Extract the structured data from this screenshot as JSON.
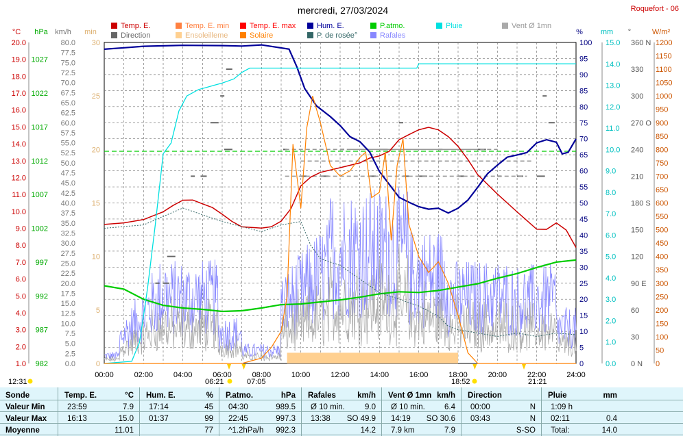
{
  "title": "mercredi, 27/03/2024",
  "station": "Roquefort - 06",
  "colors": {
    "temp": "#cc0000",
    "temp_min": "#ff8040",
    "temp_max": "#ff0000",
    "hum": "#000099",
    "patm": "#00cc00",
    "pluie": "#00e0e0",
    "vent": "#aaaaaa",
    "direction": "#666666",
    "ensoleillement": "#ffd090",
    "solaire": "#ff8000",
    "rosee": "#336666",
    "rafales": "#8888ff"
  },
  "legend": [
    {
      "label": "Temp. E.",
      "color": "#cc0000"
    },
    {
      "label": "Temp. E. min",
      "color": "#ff8040"
    },
    {
      "label": "Temp. E. max",
      "color": "#ff0000"
    },
    {
      "label": "Hum. E.",
      "color": "#000099"
    },
    {
      "label": "P.atmo.",
      "color": "#00cc00"
    },
    {
      "label": "Pluie",
      "color": "#00e0e0"
    },
    {
      "label": "Vent Ø 1mn",
      "color": "#aaaaaa"
    },
    {
      "label": "Direction",
      "color": "#666666"
    },
    {
      "label": "Ensoleilleme",
      "color": "#ffd090"
    },
    {
      "label": "Solaire",
      "color": "#ff8000"
    },
    {
      "label": "P. de rosée°",
      "color": "#336666"
    },
    {
      "label": "Rafales",
      "color": "#8888ff"
    }
  ],
  "chart_data": {
    "type": "line",
    "units": {
      "temp": "°C",
      "patm": "hPa",
      "wind": "km/h",
      "sun": "min",
      "hum": "%",
      "rain": "mm",
      "dir": "°",
      "solar": "W/m²"
    },
    "xticks": [
      "00:00",
      "02:00",
      "04:00",
      "06:00",
      "08:00",
      "10:00",
      "12:00",
      "14:00",
      "16:00",
      "18:00",
      "20:00",
      "22:00",
      "24:00"
    ],
    "xrange": [
      0,
      24
    ],
    "axes": {
      "temp": {
        "range": [
          1,
          20
        ],
        "ticks": [
          "20.0",
          "19.0",
          "18.0",
          "17.0",
          "16.0",
          "15.0",
          "14.0",
          "13.0",
          "12.0",
          "11.0",
          "10.0",
          "9.0",
          "8.0",
          "7.0",
          "6.0",
          "5.0",
          "4.0",
          "3.0",
          "2.0",
          "1.0"
        ]
      },
      "patm": {
        "range": [
          982,
          1029.5
        ],
        "ticks": [
          "1027",
          "1022",
          "1017",
          "1012",
          "1007",
          "1002",
          "997",
          "992",
          "987",
          "982"
        ],
        "tick_values": [
          1027,
          1022,
          1017,
          1012,
          1007,
          1002,
          997,
          992,
          987,
          982
        ]
      },
      "wind": {
        "range": [
          0,
          80
        ],
        "ticks": [
          "80.0",
          "77.5",
          "75.0",
          "72.5",
          "70.0",
          "67.5",
          "65.0",
          "62.5",
          "60.0",
          "57.5",
          "55.0",
          "52.5",
          "50.0",
          "47.5",
          "45.0",
          "42.5",
          "40.0",
          "37.5",
          "35.0",
          "32.5",
          "30.0",
          "27.5",
          "25.0",
          "22.5",
          "20.0",
          "17.5",
          "15.0",
          "12.5",
          "10.0",
          "7.5",
          "5.0",
          "2.5",
          "0.0"
        ]
      },
      "sun": {
        "range": [
          0,
          30
        ],
        "ticks": [
          "30",
          "25",
          "20",
          "15",
          "10",
          "5",
          "0"
        ],
        "tick_values": [
          30,
          25,
          20,
          15,
          10,
          5,
          0
        ]
      },
      "hum": {
        "range": [
          0,
          100
        ],
        "ticks": [
          "100",
          "95",
          "90",
          "85",
          "80",
          "75",
          "70",
          "65",
          "60",
          "55",
          "50",
          "45",
          "40",
          "35",
          "30",
          "25",
          "20",
          "15",
          "10",
          "5",
          "0"
        ]
      },
      "rain": {
        "range": [
          0,
          15
        ],
        "ticks": [
          "15.0",
          "14.0",
          "13.0",
          "12.0",
          "11.0",
          "10.0",
          "9.0",
          "8.0",
          "7.0",
          "6.0",
          "5.0",
          "4.0",
          "3.0",
          "2.0",
          "1.0",
          "0.0"
        ]
      },
      "dir": {
        "range": [
          0,
          360
        ],
        "ticks": [
          "360 N",
          "330",
          "300",
          "270 O",
          "240",
          "210",
          "180 S",
          "150",
          "120",
          "90  E",
          "60",
          "30",
          "0   N"
        ]
      },
      "solar": {
        "range": [
          0,
          1200
        ],
        "ticks": [
          "1200",
          "1150",
          "1100",
          "1050",
          "1000",
          "950",
          "900",
          "850",
          "800",
          "750",
          "700",
          "650",
          "600",
          "550",
          "500",
          "450",
          "400",
          "350",
          "300",
          "250",
          "200",
          "150",
          "100",
          "50",
          "0"
        ]
      }
    },
    "series": [
      {
        "name": "Temp. E.",
        "axis": "temp",
        "x": [
          0,
          1,
          2,
          3,
          3.5,
          4,
          4.5,
          5,
          5.5,
          6,
          6.5,
          7,
          8,
          8.5,
          9,
          9.5,
          10,
          10.5,
          11,
          12,
          13,
          13.5,
          14,
          14.5,
          15,
          15.5,
          16,
          16.5,
          17,
          17.5,
          18,
          18.5,
          19,
          20,
          21,
          22,
          22.5,
          23,
          23.5,
          24
        ],
        "y": [
          9.2,
          9.3,
          9.5,
          10.0,
          10.3,
          10.6,
          10.6,
          10.4,
          10.2,
          9.8,
          9.4,
          9.1,
          9.0,
          9.1,
          9.4,
          10.2,
          11.5,
          12.0,
          12.3,
          12.6,
          12.9,
          13.1,
          13.3,
          13.5,
          14.2,
          14.5,
          14.8,
          15.0,
          14.9,
          14.5,
          13.9,
          13.1,
          12.2,
          11.0,
          10.0,
          9.0,
          8.9,
          9.3,
          8.9,
          7.9
        ]
      },
      {
        "name": "Hum. E.",
        "axis": "hum",
        "x": [
          0,
          1,
          2,
          4,
          6,
          7,
          8,
          9.4,
          9.8,
          10.2,
          10.8,
          11.5,
          12,
          12.5,
          13,
          13.5,
          14,
          14.5,
          15,
          15.5,
          16,
          16.5,
          17,
          17.5,
          18,
          18.5,
          19,
          19.5,
          20,
          20.5,
          21,
          21.5,
          22,
          22.5,
          23,
          23.3,
          23.6,
          24
        ],
        "y": [
          98,
          98,
          99,
          99,
          99,
          99,
          99,
          98,
          92,
          86,
          80,
          77,
          74,
          71,
          69,
          66,
          60,
          56,
          52,
          50,
          49,
          48,
          48,
          47,
          48,
          51,
          55,
          59,
          62,
          64,
          65,
          66,
          69,
          70,
          69,
          65,
          66,
          70
        ]
      },
      {
        "name": "P.atmo.",
        "axis": "patm",
        "x": [
          0,
          1,
          2,
          3,
          4,
          5,
          6,
          7,
          8,
          9,
          10,
          11,
          12,
          13,
          14,
          15,
          16,
          17,
          18,
          19,
          20,
          21,
          22,
          23,
          24
        ],
        "y": [
          993.5,
          993,
          991.5,
          990.6,
          990.2,
          990,
          989.7,
          989.8,
          990.2,
          990.7,
          990.8,
          991.1,
          991.4,
          991.8,
          992.3,
          992.6,
          992.5,
          992.8,
          993.3,
          993.8,
          994.6,
          995.3,
          996.2,
          997,
          997.3
        ]
      },
      {
        "name": "Pluie",
        "axis": "rain",
        "x": [
          0,
          1.4,
          1.8,
          2.2,
          2.6,
          3.0,
          3.4,
          3.8,
          4.2,
          4.8,
          5.2,
          5.6,
          6.0,
          6.3,
          6.6,
          7.0,
          7.4,
          8.0,
          9.0,
          12,
          15.9,
          16.0,
          20,
          24
        ],
        "y": [
          0,
          0.1,
          1.0,
          3.5,
          6.5,
          9.8,
          10.3,
          11.8,
          12.5,
          12.8,
          12.9,
          13.0,
          13.1,
          13.2,
          13.3,
          13.6,
          13.8,
          13.8,
          13.8,
          13.8,
          13.8,
          14.0,
          14.0,
          14.0
        ]
      },
      {
        "name": "P. de rosée°",
        "axis": "temp",
        "x": [
          0,
          2,
          4,
          6,
          8,
          9,
          10,
          10.5,
          11,
          12,
          13,
          14,
          15,
          16,
          17,
          17.5,
          18,
          19,
          20,
          21,
          22,
          23,
          24
        ],
        "y": [
          9.0,
          9.2,
          10.2,
          9.4,
          8.8,
          9.2,
          9.4,
          8.0,
          7.2,
          6.8,
          6.0,
          5.2,
          4.8,
          4.4,
          3.8,
          3.2,
          3.0,
          2.8,
          2.6,
          2.8,
          2.6,
          2.8,
          2.7
        ]
      },
      {
        "name": "Solaire",
        "axis": "solar",
        "x": [
          0,
          7,
          8,
          8.5,
          9,
          9.3,
          9.6,
          10,
          10.3,
          10.6,
          11,
          11.5,
          12,
          12.5,
          13,
          13.3,
          13.6,
          14,
          14.3,
          14.6,
          14.9,
          15.2,
          15.5,
          16,
          16.5,
          17,
          17.5,
          18,
          18.5,
          19,
          24
        ],
        "y": [
          0,
          0,
          20,
          60,
          120,
          250,
          820,
          580,
          880,
          1000,
          900,
          740,
          700,
          720,
          770,
          790,
          620,
          640,
          790,
          460,
          740,
          840,
          520,
          400,
          340,
          380,
          300,
          180,
          40,
          0,
          0
        ]
      },
      {
        "name": "Ensoleilleme",
        "axis": "sun",
        "x": [
          9.3,
          18.0
        ],
        "y": [
          1,
          1
        ]
      },
      {
        "name": "Vent Ø 1mn",
        "axis": "wind",
        "note": "noisy"
      },
      {
        "name": "Rafales",
        "axis": "wind",
        "note": "noisy"
      }
    ],
    "reference_lines": [
      {
        "axis": "patm",
        "value": 1013.4,
        "style": "dashed",
        "color": "#00cc00"
      }
    ]
  },
  "bottom_labels": {
    "sunrise_label": "06:21",
    "sunrise_icon_time": "12:31",
    "sunrise_alt": "07:05",
    "sunset_label": "18:52",
    "sunset_alt": "21:21"
  },
  "summary": {
    "headers": {
      "c1": "Sonde",
      "c2": "Temp. E.",
      "c2u": "°C",
      "c3": "Hum. E.",
      "c3u": "%",
      "c4": "P.atmo.",
      "c4u": "hPa",
      "c5": "Rafales",
      "c5u": "km/h",
      "c6": "Vent Ø 1mn",
      "c6u": "km/h",
      "c7": "Direction",
      "c8": "Pluie",
      "c8u": "mm"
    },
    "rows": [
      {
        "label": "Valeur Min",
        "c2t": "23:59",
        "c2v": "7.9",
        "c3t": "17:14",
        "c3v": "45",
        "c4t": "04:30",
        "c4v": "989.5",
        "c5t": "Ø 10 min.",
        "c5v": "9.0",
        "c6t": "Ø 10 min.",
        "c6v": "6.4",
        "c7t": "00:00",
        "c7v": "N",
        "c8t": "1:09 h",
        "c8v": ""
      },
      {
        "label": "Valeur Max",
        "c2t": "16:13",
        "c2v": "15.0",
        "c3t": "01:37",
        "c3v": "99",
        "c4t": "22:45",
        "c4v": "997.3",
        "c5t": "13:38",
        "c5v": "SO 49.9",
        "c6t": "14:19",
        "c6v": "SO 30.6",
        "c7t": "03:43",
        "c7v": "N",
        "c8t": "02:11",
        "c8v": "0.4"
      },
      {
        "label": "Moyenne",
        "c2t": "",
        "c2v": "11.01",
        "c3t": "",
        "c3v": "77",
        "c4t": "^1.2hPa/h",
        "c4v": "992.3",
        "c5t": "",
        "c5v": "14.2",
        "c6t": "7.9 km",
        "c6v": "7.9",
        "c7t": "",
        "c7v": "S-SO",
        "c8t": "Total:",
        "c8v": "14.0"
      }
    ]
  }
}
